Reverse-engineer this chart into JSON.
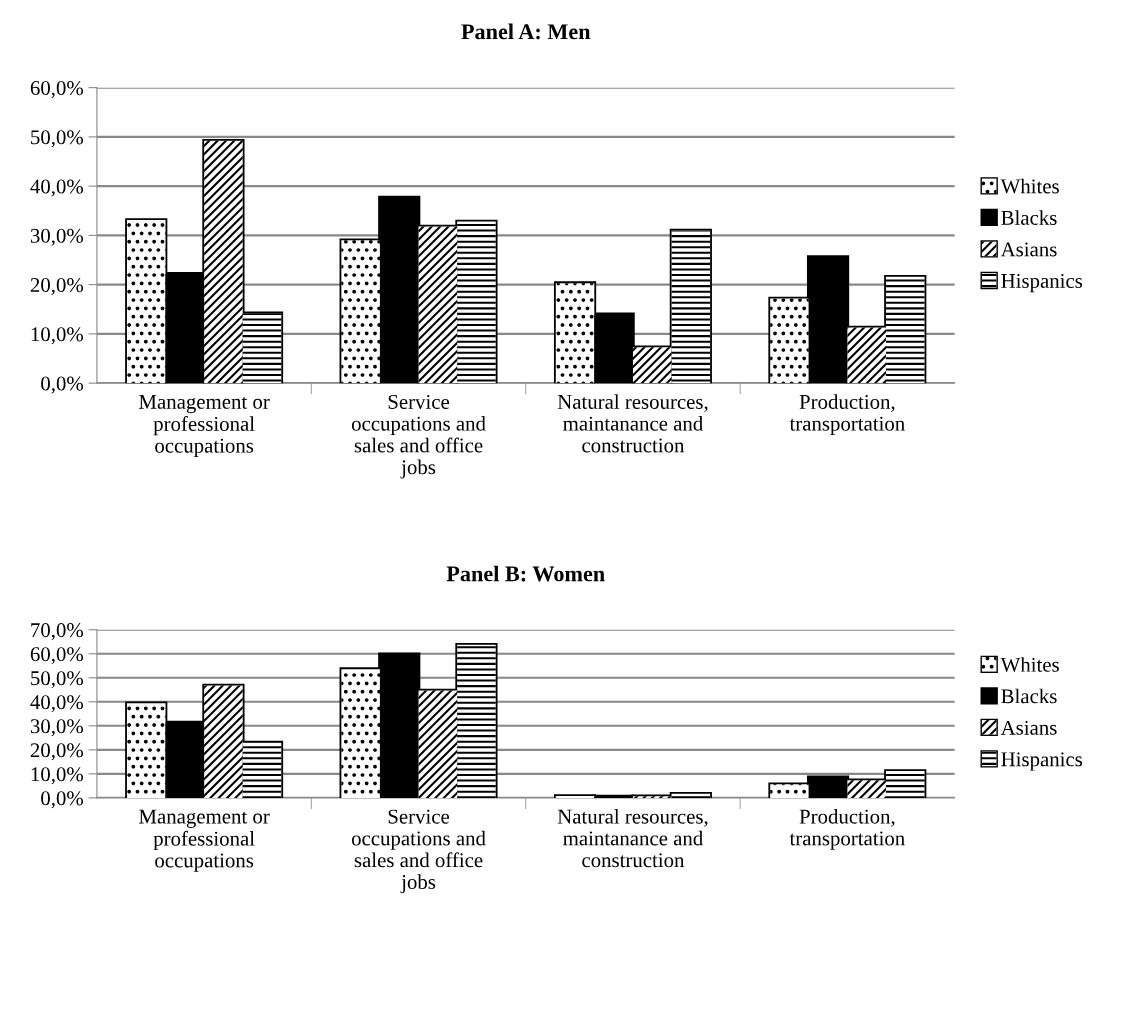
{
  "chart_data": [
    {
      "type": "bar",
      "title": "Panel A: Men",
      "categories": [
        "Management or professional occupations",
        "Service occupations and sales and office jobs",
        "Natural resources, maintanance and construction",
        "Production, transportation"
      ],
      "series": [
        {
          "name": "Whites",
          "color": "#ffffff",
          "values": [
            33.1,
            29.0,
            20.3,
            17.2
          ]
        },
        {
          "name": "Blacks",
          "color": "#000000",
          "values": [
            22.2,
            37.7,
            14.0,
            25.6
          ]
        },
        {
          "name": "Asians",
          "color": "#ffffff",
          "values": [
            49.2,
            31.8,
            7.3,
            11.3
          ]
        },
        {
          "name": "Hispanics",
          "color": "#ffffff",
          "values": [
            14.2,
            32.8,
            31.0,
            21.6
          ]
        }
      ],
      "ylim": [
        0,
        60
      ],
      "yticks": [
        {
          "value": 0,
          "label": "0,0%"
        },
        {
          "value": 10,
          "label": "10,0%"
        },
        {
          "value": 20,
          "label": "20,0%"
        },
        {
          "value": 30,
          "label": "30,0%"
        },
        {
          "value": 40,
          "label": "40,0%"
        },
        {
          "value": 50,
          "label": "50,0%"
        },
        {
          "value": 60,
          "label": "60,0%"
        }
      ],
      "grid": "y",
      "legend": "right"
    },
    {
      "type": "bar",
      "title": "Panel B: Women",
      "categories": [
        "Management or professional occupations",
        "Service occupations and sales and office jobs",
        "Natural resources, maintanance and construction",
        "Production, transportation"
      ],
      "series": [
        {
          "name": "Whites",
          "color": "#ffffff",
          "values": [
            39.4,
            53.6,
            0.8,
            5.7
          ]
        },
        {
          "name": "Blacks",
          "color": "#000000",
          "values": [
            31.4,
            59.8,
            0.5,
            8.6
          ]
        },
        {
          "name": "Asians",
          "color": "#ffffff",
          "values": [
            46.8,
            44.7,
            0.7,
            7.3
          ]
        },
        {
          "name": "Hispanics",
          "color": "#ffffff",
          "values": [
            23.0,
            63.7,
            1.7,
            11.2
          ]
        }
      ],
      "ylim": [
        0,
        70
      ],
      "yticks": [
        {
          "value": 0,
          "label": "0,0%"
        },
        {
          "value": 10,
          "label": "10,0%"
        },
        {
          "value": 20,
          "label": "20,0%"
        },
        {
          "value": 30,
          "label": "30,0%"
        },
        {
          "value": 40,
          "label": "40,0%"
        },
        {
          "value": 50,
          "label": "50,0%"
        },
        {
          "value": 60,
          "label": "60,0%"
        },
        {
          "value": 70,
          "label": "70,0%"
        }
      ],
      "grid": "y",
      "legend": "right"
    }
  ]
}
